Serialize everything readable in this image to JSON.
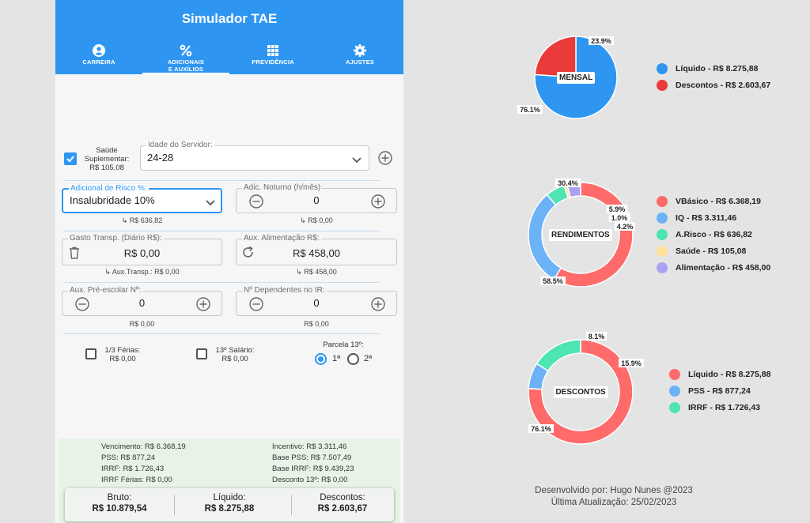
{
  "app": {
    "title": "Simulador TAE",
    "tabs": [
      {
        "label": "CARREIRA",
        "icon": "person-icon"
      },
      {
        "label": "ADICIONAIS",
        "label2": "E AUXÍLIOS",
        "icon": "percent-icon",
        "active": true
      },
      {
        "label": "PREVIDÊNCIA",
        "icon": "grid-icon"
      },
      {
        "label": "AJUSTES",
        "icon": "gear-icon"
      }
    ]
  },
  "form": {
    "saude": {
      "label1": "Saúde",
      "label2": "Suplementar:",
      "value": "R$ 105,08",
      "checked": true
    },
    "idade": {
      "label": "Idade do Servidor:",
      "value": "24-28"
    },
    "risco": {
      "label": "Adicional de Risco %:",
      "value": "Insalubridade 10%",
      "sub": "↳ R$ 636,82"
    },
    "noturno": {
      "label": "Adic. Noturno (h/mês)",
      "value": "0",
      "sub": "↳ R$ 0,00"
    },
    "transp": {
      "label": "Gasto Transp. (Diário R$):",
      "value": "R$ 0,00",
      "sub": "↳ Aux.Transp.: R$ 0,00"
    },
    "alim": {
      "label": "Aux. Alimentação R$:",
      "value": "R$ 458,00",
      "sub": "↳ R$ 458,00"
    },
    "preescolar": {
      "label": "Aux. Pré-escolar Nº:",
      "value": "0",
      "sub": "R$ 0,00"
    },
    "dependentes": {
      "label": "Nº Dependentes no IR:",
      "value": "0",
      "sub": "R$ 0,00"
    },
    "ferias": {
      "label": "1/3 Férias:",
      "value": "R$ 0,00"
    },
    "decimo": {
      "label": "13º Salário:",
      "value": "R$ 0,00"
    },
    "parcela": {
      "label": "Parcela 13º:",
      "opt1": "1ª",
      "opt2": "2ª",
      "selected": "1ª"
    }
  },
  "summary": {
    "vencimento": "Vencimento: R$ 6.368,19",
    "pss": "PSS: R$ 877,24",
    "irrf": "IRRF: R$ 1.726,43",
    "irrf_ferias": "IRRF Férias: R$ 0,00",
    "incentivo": "Incentivo: R$ 3.311,46",
    "base_pss": "Base PSS: R$ 7.507,49",
    "base_irrf": "Base IRRF: R$ 9.439,23",
    "desconto13": "Desconto 13º: R$ 0,00"
  },
  "totals": {
    "bruto_label": "Bruto:",
    "bruto": "R$ 10.879,54",
    "liquido_label": "Líquido:",
    "liquido": "R$ 8.275,88",
    "descontos_label": "Descontos:",
    "descontos": "R$ 2.603,67"
  },
  "charts": [
    {
      "center": "MENSAL",
      "type": "pie",
      "slices": [
        {
          "label": "Líquido - R$ 8.275,88",
          "pct": "76.1%",
          "value": 76.1,
          "color": "#2e96f1"
        },
        {
          "label": "Descontos - R$ 2.603,67",
          "pct": "23.9%",
          "value": 23.9,
          "color": "#ea3a3a"
        }
      ]
    },
    {
      "center": "RENDIMENTOS",
      "type": "donut",
      "slices": [
        {
          "label": "VBásico - R$ 6.368,19",
          "pct": "58.5%",
          "value": 58.5,
          "color": "#ff6b6b"
        },
        {
          "label": "IQ - R$ 3.311,46",
          "pct": "30.4%",
          "value": 30.4,
          "color": "#6cb2f7"
        },
        {
          "label": "A.Risco - R$ 636,82",
          "pct": "5.9%",
          "value": 5.9,
          "color": "#4ee4b3"
        },
        {
          "label": "Saúde - R$ 105,08",
          "pct": "1.0%",
          "value": 1.0,
          "color": "#ffe19a"
        },
        {
          "label": "Alimentação - R$ 458,00",
          "pct": "4.2%",
          "value": 4.2,
          "color": "#a9a2f0"
        }
      ]
    },
    {
      "center": "DESCONTOS",
      "type": "donut",
      "slices": [
        {
          "label": "Líquido - R$ 8.275,88",
          "pct": "76.1%",
          "value": 76.1,
          "color": "#ff6b6b"
        },
        {
          "label": "PSS - R$ 877,24",
          "pct": "8.1%",
          "value": 8.1,
          "color": "#6cb2f7"
        },
        {
          "label": "IRRF - R$ 1.726,43",
          "pct": "15.9%",
          "value": 15.9,
          "color": "#4ee4b3"
        }
      ]
    }
  ],
  "footer": {
    "line1": "Desenvolvido por: Hugo Nunes @2023",
    "line2": "Última Atualização: 25/02/2023"
  }
}
